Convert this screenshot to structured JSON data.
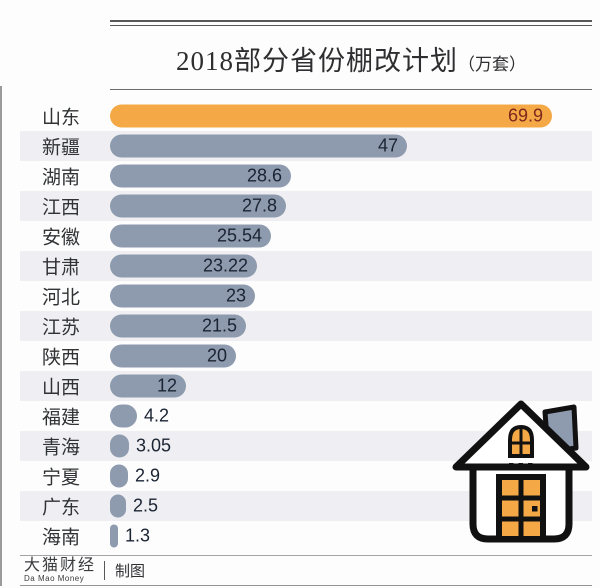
{
  "title": {
    "main": "2018部分省份棚改计划",
    "unit": "（万套）"
  },
  "chart_data": {
    "type": "bar",
    "orientation": "horizontal",
    "title": "2018部分省份棚改计划（万套）",
    "unit": "万套",
    "categories": [
      "山东",
      "新疆",
      "湖南",
      "江西",
      "安徽",
      "甘肃",
      "河北",
      "江苏",
      "陕西",
      "山西",
      "福建",
      "青海",
      "宁夏",
      "广东",
      "海南"
    ],
    "values": [
      69.9,
      47,
      28.6,
      27.8,
      25.54,
      23.22,
      23,
      21.5,
      20,
      12,
      4.2,
      3.05,
      2.9,
      2.5,
      1.3
    ],
    "value_labels": [
      "69.9",
      "47",
      "28.6",
      "27.8",
      "25.54",
      "23.22",
      "23",
      "21.5",
      "20",
      "12",
      "4.2",
      "3.05",
      "2.9",
      "2.5",
      "1.3"
    ],
    "xlim": [
      0,
      69.9
    ],
    "grid": false,
    "legend": false,
    "highlight_index": 0,
    "highlight_color": "#f5a946",
    "bar_color": "#8e9aad",
    "stripe_color": "#efeff3",
    "value_color_inside_highlight": "#7c281c",
    "value_color": "#1b2433"
  },
  "footer": {
    "brand": "大猫财经",
    "brand_sub": "Da Mao Money",
    "credit": "制图"
  },
  "icons": {
    "house": "house-icon"
  }
}
